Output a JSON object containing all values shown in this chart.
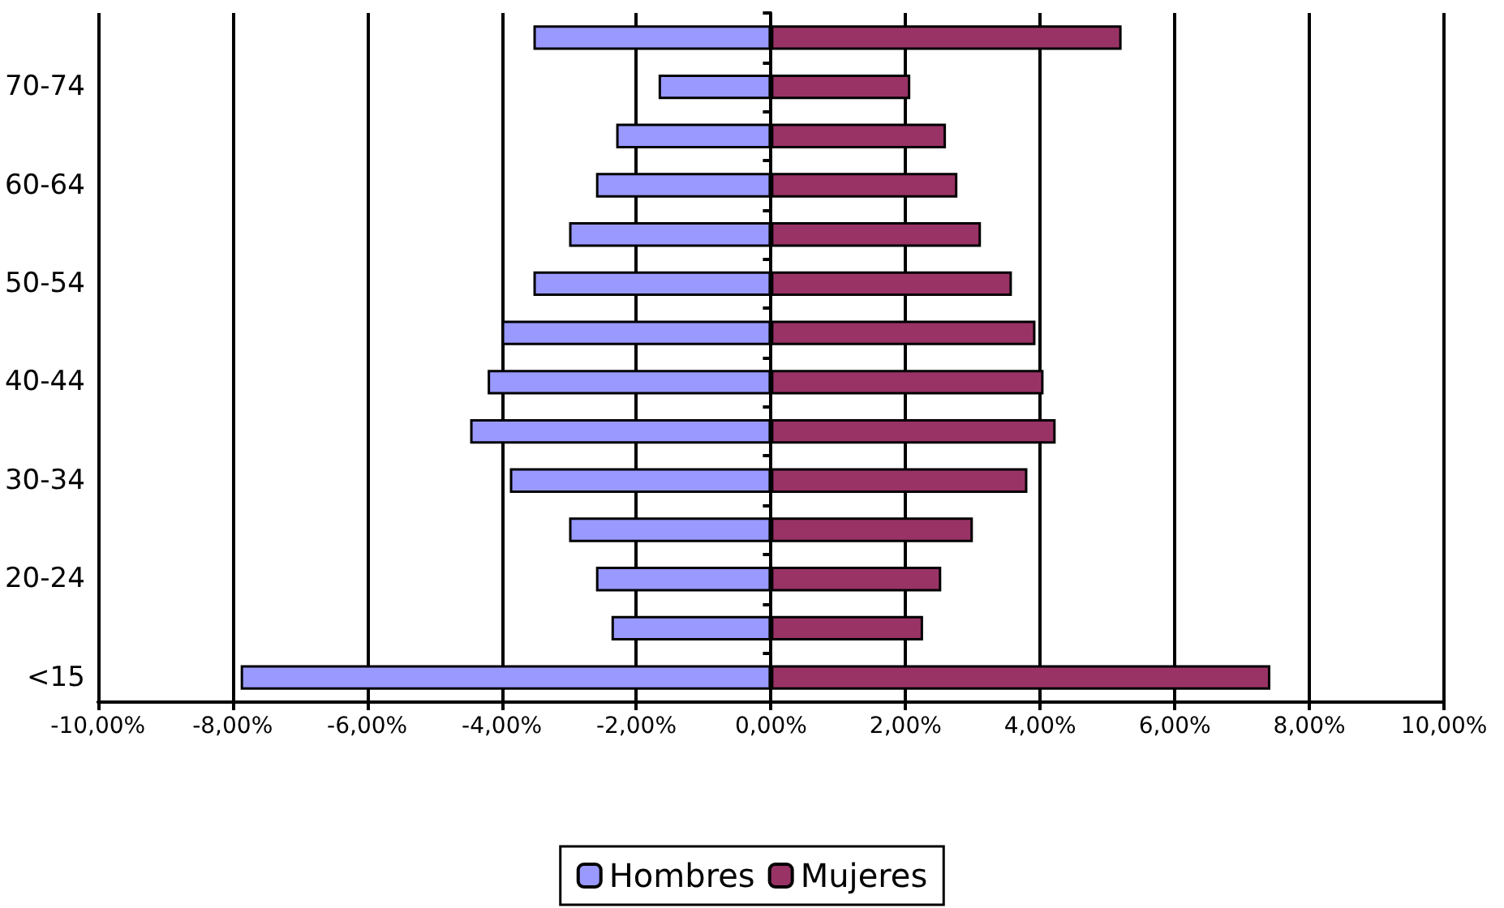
{
  "chart_data": {
    "type": "bar",
    "orientation": "horizontal",
    "stacked": true,
    "categories": [
      null,
      "70-74",
      null,
      "60-64",
      null,
      "50-54",
      null,
      "40-44",
      null,
      "30-34",
      null,
      "20-24",
      null,
      "<15"
    ],
    "series": [
      {
        "name": "Hombres",
        "color": "#9999ff",
        "values": [
          -3.53,
          -1.67,
          -2.3,
          -2.6,
          -3.0,
          -3.53,
          -4.0,
          -4.21,
          -4.47,
          -3.88,
          -3.0,
          -2.6,
          -2.37,
          -7.88
        ]
      },
      {
        "name": "Mujeres",
        "color": "#993366",
        "values": [
          5.21,
          2.07,
          2.6,
          2.77,
          3.12,
          3.58,
          3.93,
          4.05,
          4.23,
          3.81,
          3.0,
          2.53,
          2.26,
          7.42
        ]
      }
    ],
    "xlim": [
      -10,
      10
    ],
    "xticks": [
      {
        "value": -10,
        "label": "-10,00%"
      },
      {
        "value": -8,
        "label": "-8,00%"
      },
      {
        "value": -6,
        "label": "-6,00%"
      },
      {
        "value": -4,
        "label": "-4,00%"
      },
      {
        "value": -2,
        "label": "-2,00%"
      },
      {
        "value": 0,
        "label": "0,00%"
      },
      {
        "value": 2,
        "label": "2,00%"
      },
      {
        "value": 4,
        "label": "4,00%"
      },
      {
        "value": 6,
        "label": "6,00%"
      },
      {
        "value": 8,
        "label": "8,00%"
      },
      {
        "value": 10,
        "label": "10,00%"
      }
    ],
    "grid": "x",
    "legend": "bottom"
  }
}
